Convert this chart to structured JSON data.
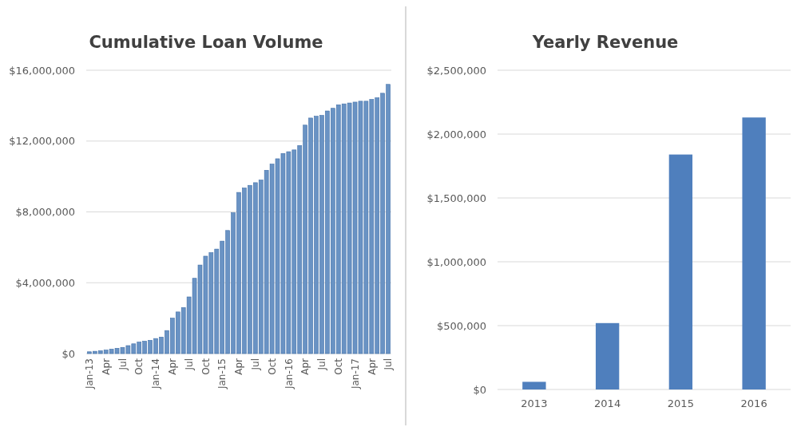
{
  "chart_data": [
    {
      "type": "bar",
      "title": "Cumulative Loan Volume",
      "categories": [
        "Jan-13",
        null,
        null,
        "Apr",
        null,
        null,
        "Jul",
        null,
        null,
        "Oct",
        null,
        null,
        "Jan-14",
        null,
        null,
        "Apr",
        null,
        null,
        "Jul",
        null,
        null,
        "Oct",
        null,
        null,
        "Jan-15",
        null,
        null,
        "Apr",
        null,
        null,
        "Jul",
        null,
        null,
        "Oct",
        null,
        null,
        "Jan-16",
        null,
        null,
        "Apr",
        null,
        null,
        "Jul",
        null,
        null,
        "Oct",
        null,
        null,
        "Jan-17",
        null,
        null,
        "Apr",
        null,
        null,
        "Jul"
      ],
      "values": [
        100000,
        130000,
        160000,
        200000,
        250000,
        300000,
        350000,
        450000,
        550000,
        650000,
        700000,
        750000,
        850000,
        930000,
        1300000,
        2000000,
        2350000,
        2600000,
        3200000,
        4250000,
        5000000,
        5500000,
        5700000,
        5900000,
        6350000,
        6950000,
        7950000,
        9100000,
        9350000,
        9500000,
        9650000,
        9800000,
        10350000,
        10700000,
        11000000,
        11300000,
        11400000,
        11500000,
        11750000,
        12900000,
        13300000,
        13400000,
        13450000,
        13700000,
        13850000,
        14050000,
        14100000,
        14150000,
        14200000,
        14250000,
        14250000,
        14350000,
        14450000,
        14700000,
        15200000
      ],
      "color": "#6a93c4",
      "ylim": [
        0,
        16000000
      ],
      "yticks": [
        {
          "value": 0,
          "label": "$0"
        },
        {
          "value": 4000000,
          "label": "$4,000,000"
        },
        {
          "value": 8000000,
          "label": "$8,000,000"
        },
        {
          "value": 12000000,
          "label": "$12,000,000"
        },
        {
          "value": 16000000,
          "label": "$16,000,000"
        }
      ],
      "grid": true
    },
    {
      "type": "bar",
      "title": "Yearly Revenue",
      "categories": [
        "2013",
        "2014",
        "2015",
        "2016"
      ],
      "values": [
        60000,
        520000,
        1840000,
        2130000
      ],
      "color": "#4f7fbd",
      "ylim": [
        0,
        2500000
      ],
      "yticks": [
        {
          "value": 0,
          "label": "$0"
        },
        {
          "value": 500000,
          "label": "$500,000"
        },
        {
          "value": 1000000,
          "label": "$1,000,000"
        },
        {
          "value": 1500000,
          "label": "$1,500,000"
        },
        {
          "value": 2000000,
          "label": "$2,000,000"
        },
        {
          "value": 2500000,
          "label": "$2,500,000"
        }
      ],
      "grid": true
    }
  ]
}
